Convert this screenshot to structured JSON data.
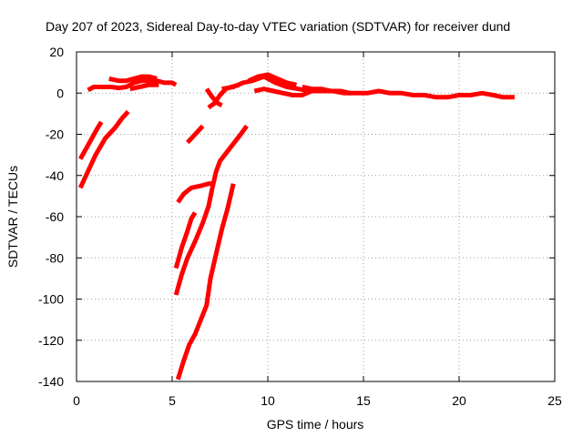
{
  "chart_data": {
    "type": "line",
    "title": "Day 207 of 2023, Sidereal Day-to-day VTEC variation (SDTVAR) for receiver dund",
    "xlabel": "GPS time / hours",
    "ylabel": "SDTVAR / TECUs",
    "xlim": [
      0,
      25
    ],
    "ylim": [
      -140,
      20
    ],
    "xticks": [
      0,
      5,
      10,
      15,
      20,
      25
    ],
    "yticks": [
      20,
      0,
      -20,
      -40,
      -60,
      -80,
      -100,
      -120,
      -140
    ],
    "grid": true,
    "series_color": "#ff0000",
    "series": [
      {
        "name": "arc-upper-main",
        "x": [
          0.6,
          0.9,
          1.3,
          1.8,
          2.2,
          2.6,
          3.0,
          3.4,
          3.8,
          4.2,
          4.6,
          5.0,
          5.2
        ],
        "y": [
          1.5,
          3,
          3,
          3,
          2.5,
          3,
          5,
          6,
          6,
          6,
          5,
          5,
          4
        ]
      },
      {
        "name": "arc-upper-high",
        "x": [
          1.7,
          2.2,
          2.6,
          3.0,
          3.4,
          3.8,
          4.2
        ],
        "y": [
          7,
          6,
          6,
          7,
          8,
          8,
          7
        ]
      },
      {
        "name": "arc-upper-low",
        "x": [
          2.8,
          3.3,
          3.8,
          4.3
        ],
        "y": [
          2,
          3,
          4,
          4
        ]
      },
      {
        "name": "arc-left-a",
        "x": [
          0.2,
          0.5,
          0.8,
          1.1,
          1.3
        ],
        "y": [
          -32,
          -27,
          -22,
          -17,
          -14
        ]
      },
      {
        "name": "arc-left-b",
        "x": [
          0.2,
          0.6,
          1.0,
          1.5,
          2.0,
          2.4,
          2.7
        ],
        "y": [
          -46,
          -38,
          -30,
          -22,
          -17,
          -12,
          -9
        ]
      },
      {
        "name": "arc-mid-short",
        "x": [
          5.8,
          6.1,
          6.4,
          6.6
        ],
        "y": [
          -24,
          -21,
          -18,
          -16
        ]
      },
      {
        "name": "arc-mid-left",
        "x": [
          5.3,
          5.6,
          6.0,
          6.5,
          6.9,
          7.2
        ],
        "y": [
          -53,
          -49,
          -46,
          -45,
          -44,
          -44
        ]
      },
      {
        "name": "arc-steep-a",
        "x": [
          5.2,
          5.5,
          5.8,
          6.0,
          6.2
        ],
        "y": [
          -85,
          -75,
          -67,
          -61,
          -58
        ]
      },
      {
        "name": "arc-steep-b",
        "x": [
          5.2,
          5.5,
          5.8,
          6.2,
          6.6,
          6.9,
          7.1,
          7.3,
          7.5,
          8.0,
          8.5,
          8.9
        ],
        "y": [
          -98,
          -88,
          -80,
          -72,
          -63,
          -55,
          -46,
          -38,
          -33,
          -27,
          -21,
          -16
        ]
      },
      {
        "name": "arc-steep-c",
        "x": [
          5.3,
          5.6,
          5.9,
          6.2,
          6.5,
          6.8,
          7.0,
          7.3,
          7.6,
          7.9,
          8.2
        ],
        "y": [
          -139,
          -130,
          -122,
          -117,
          -110,
          -103,
          -90,
          -78,
          -66,
          -56,
          -44
        ]
      },
      {
        "name": "arc-right-dip",
        "x": [
          6.8,
          7.1,
          7.4,
          7.6
        ],
        "y": [
          2,
          -2,
          -5,
          -6
        ]
      },
      {
        "name": "arc-right-rise",
        "x": [
          6.9,
          7.2,
          7.5,
          7.8,
          8.1,
          8.5
        ],
        "y": [
          -7,
          -5,
          -1,
          2,
          3,
          4
        ]
      },
      {
        "name": "arc-right-main",
        "x": [
          7.6,
          8.2,
          8.7,
          9.2,
          9.8,
          10.4,
          11.0,
          11.6,
          12.2,
          12.8,
          13.4,
          14.0,
          14.6,
          15.2,
          15.8,
          16.4,
          17.0,
          17.6,
          18.2,
          18.8,
          19.4,
          20.0,
          20.6,
          21.2,
          21.8,
          22.3,
          22.9
        ],
        "y": [
          2,
          3,
          5,
          6,
          8,
          5,
          3,
          2,
          1,
          1,
          1,
          0,
          0,
          0,
          1,
          0,
          0,
          -1,
          -1,
          -2,
          -2,
          -1,
          -1,
          0,
          -1,
          -2,
          -2
        ]
      },
      {
        "name": "arc-right-high",
        "x": [
          9.0,
          9.5,
          10.0,
          10.5,
          11.0,
          11.5
        ],
        "y": [
          6,
          8,
          9,
          7,
          5,
          4
        ]
      },
      {
        "name": "arc-right-low",
        "x": [
          9.3,
          9.8,
          10.3,
          10.8,
          11.3,
          11.8,
          12.3,
          12.8
        ],
        "y": [
          1,
          2,
          1,
          0,
          -1,
          -1,
          1,
          2
        ]
      },
      {
        "name": "arc-right-mid",
        "x": [
          11.8,
          12.3,
          12.8,
          13.3,
          13.8,
          14.3
        ],
        "y": [
          3,
          2,
          2,
          1,
          1,
          0
        ]
      }
    ]
  }
}
